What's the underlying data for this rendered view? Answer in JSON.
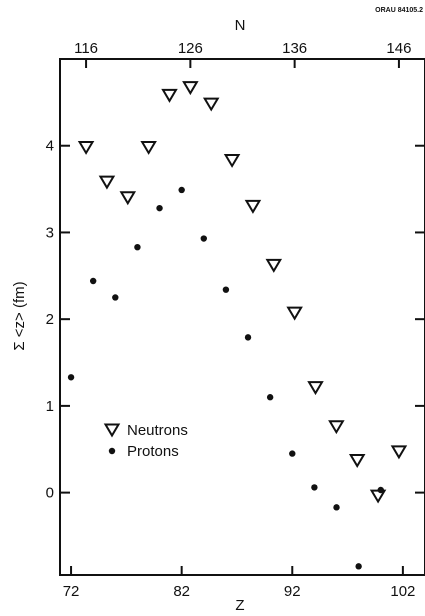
{
  "report_id": "ORAU 84105.2",
  "chart_data": {
    "type": "scatter",
    "x_bottom": {
      "label": "Z",
      "ticks": [
        72,
        82,
        92,
        102
      ],
      "range": [
        71,
        104
      ]
    },
    "x_top": {
      "label": "N",
      "ticks": [
        116,
        126,
        136,
        146
      ],
      "range": [
        113.5,
        148.5
      ]
    },
    "y": {
      "label": "Σ <z>  (fm)",
      "ticks": [
        0,
        1,
        2,
        3,
        4
      ],
      "range": [
        -0.95,
        5.0
      ]
    },
    "grid": false,
    "legend_position": "bottom-left",
    "series": [
      {
        "name": "Neutrons",
        "marker": "open-triangle-down",
        "axis": "N",
        "points": [
          {
            "x": 116.0,
            "y": 3.98
          },
          {
            "x": 118.0,
            "y": 3.58
          },
          {
            "x": 120.0,
            "y": 3.4
          },
          {
            "x": 122.0,
            "y": 3.98
          },
          {
            "x": 124.0,
            "y": 4.58
          },
          {
            "x": 126.0,
            "y": 4.67
          },
          {
            "x": 128.0,
            "y": 4.48
          },
          {
            "x": 130.0,
            "y": 3.83
          },
          {
            "x": 132.0,
            "y": 3.3
          },
          {
            "x": 134.0,
            "y": 2.62
          },
          {
            "x": 136.0,
            "y": 2.07
          },
          {
            "x": 138.0,
            "y": 1.21
          },
          {
            "x": 140.0,
            "y": 0.76
          },
          {
            "x": 142.0,
            "y": 0.37
          },
          {
            "x": 144.0,
            "y": -0.04
          },
          {
            "x": 146.0,
            "y": 0.47
          }
        ]
      },
      {
        "name": "Protons",
        "marker": "filled-circle",
        "axis": "Z",
        "points": [
          {
            "x": 72.0,
            "y": 1.33
          },
          {
            "x": 74.0,
            "y": 2.44
          },
          {
            "x": 76.0,
            "y": 2.25
          },
          {
            "x": 78.0,
            "y": 2.83
          },
          {
            "x": 80.0,
            "y": 3.28
          },
          {
            "x": 82.0,
            "y": 3.49
          },
          {
            "x": 84.0,
            "y": 2.93
          },
          {
            "x": 86.0,
            "y": 2.34
          },
          {
            "x": 88.0,
            "y": 1.79
          },
          {
            "x": 90.0,
            "y": 1.1
          },
          {
            "x": 92.0,
            "y": 0.45
          },
          {
            "x": 94.0,
            "y": 0.06
          },
          {
            "x": 96.0,
            "y": -0.17
          },
          {
            "x": 98.0,
            "y": -0.85
          },
          {
            "x": 100.0,
            "y": 0.03
          }
        ]
      }
    ]
  }
}
